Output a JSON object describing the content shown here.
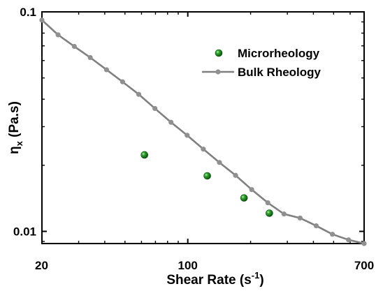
{
  "chart_data": {
    "type": "scatter",
    "xscale": "log",
    "yscale": "log",
    "xlim": [
      20,
      700
    ],
    "ylim": [
      0.0088,
      0.1
    ],
    "x_ticks": [
      {
        "value": 20,
        "label": "20"
      },
      {
        "value": 100,
        "label": "100"
      },
      {
        "value": 700,
        "label": "700"
      }
    ],
    "y_ticks": [
      {
        "value": 0.01,
        "label": "0.01"
      },
      {
        "value": 0.1,
        "label": "0.1"
      }
    ],
    "xlabel": {
      "main": "Shear Rate (s",
      "sup": "-1",
      "tail": ")"
    },
    "ylabel": {
      "main": "η",
      "sub": "x",
      "tail": " (Pa.s)"
    },
    "legend_position": "top-right",
    "series": [
      {
        "name": "Microrheology",
        "kind": "markers",
        "color": "#1a8a1a",
        "x": [
          62,
          124,
          186,
          246
        ],
        "y": [
          0.0223,
          0.0179,
          0.0142,
          0.0121
        ]
      },
      {
        "name": "Bulk Rheology",
        "kind": "line",
        "color": "#808080",
        "x": [
          20,
          23.9,
          28.6,
          34.1,
          40.8,
          48.7,
          58.2,
          69.6,
          83.1,
          99.3,
          118.7,
          141.8,
          169.4,
          202.4,
          241.9,
          289.1,
          345.4,
          412.7,
          493.2,
          589.3,
          700
        ],
        "y": [
          0.0917,
          0.0786,
          0.0696,
          0.0619,
          0.0545,
          0.048,
          0.0421,
          0.0363,
          0.0314,
          0.0274,
          0.0237,
          0.0206,
          0.018,
          0.0155,
          0.0135,
          0.012,
          0.0115,
          0.0106,
          0.0097,
          0.00915,
          0.0088
        ]
      }
    ]
  }
}
